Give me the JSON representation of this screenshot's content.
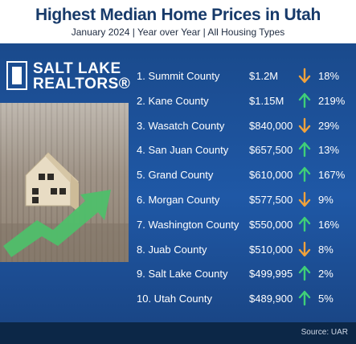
{
  "header": {
    "title": "Highest Median Home Prices in Utah",
    "subtitle": "January 2024 | Year over Year | All Housing Types"
  },
  "logo": {
    "line1": "SALT LAKE",
    "line2": "REALTORS®"
  },
  "colors": {
    "up": "#3fcf78",
    "down": "#f0a23c",
    "panel": "#1f58a6",
    "title": "#173a6a"
  },
  "rows": [
    {
      "rank_county": "1. Summit County",
      "price": "$1.2M",
      "direction": "down",
      "change": "18%"
    },
    {
      "rank_county": "2. Kane County",
      "price": "$1.15M",
      "direction": "up",
      "change": "219%"
    },
    {
      "rank_county": "3. Wasatch County",
      "price": "$840,000",
      "direction": "down",
      "change": "29%"
    },
    {
      "rank_county": "4. San Juan County",
      "price": "$657,500",
      "direction": "up",
      "change": "13%"
    },
    {
      "rank_county": "5. Grand County",
      "price": "$610,000",
      "direction": "up",
      "change": "167%"
    },
    {
      "rank_county": "6. Morgan County",
      "price": "$577,500",
      "direction": "down",
      "change": "9%"
    },
    {
      "rank_county": "7. Washington County",
      "price": "$550,000",
      "direction": "up",
      "change": "16%"
    },
    {
      "rank_county": "8. Juab County",
      "price": "$510,000",
      "direction": "down",
      "change": "8%"
    },
    {
      "rank_county": "9. Salt Lake County",
      "price": "$499,995",
      "direction": "up",
      "change": "2%"
    },
    {
      "rank_county": "10. Utah County",
      "price": "$489,900",
      "direction": "up",
      "change": "5%"
    }
  ],
  "footer": {
    "source": "Source: UAR"
  }
}
